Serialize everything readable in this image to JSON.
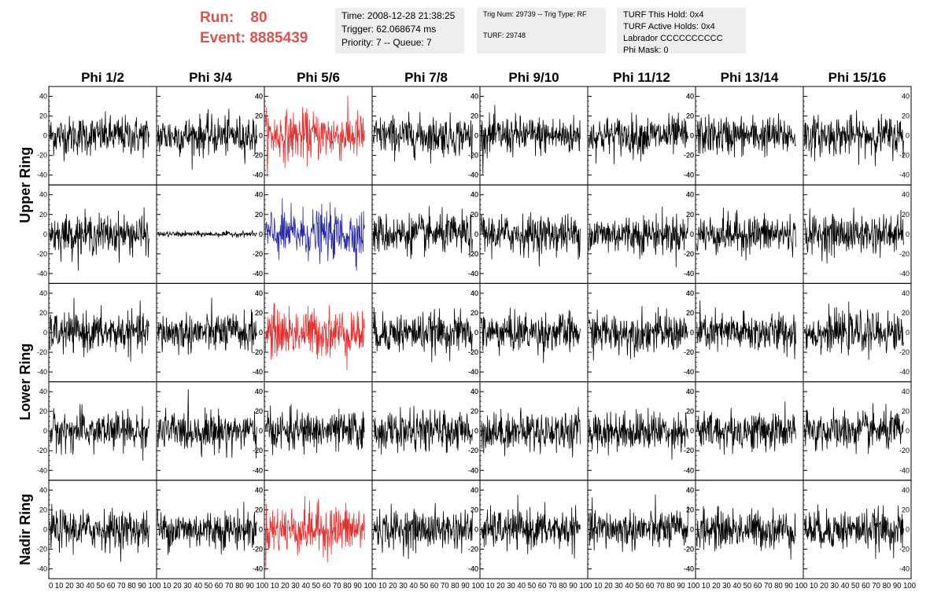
{
  "header": {
    "run_label": "Run:",
    "run_value": "80",
    "event_label": "Event:",
    "event_value": "8885439",
    "info_box_1": [
      "Time: 2008-12-28 21:38:25",
      "Trigger: 62.068674 ms",
      "Priority: 7 -- Queue: 7"
    ],
    "info_box_2": [
      "Trig Num: 29739 -- Trig Type: RF",
      "TURF: 29748"
    ],
    "info_box_3": [
      "TURF This Hold: 0x4",
      "TURF Active Holds: 0x4",
      "Labrador CCCCCCCCCC",
      "Phi Mask: 0"
    ]
  },
  "colors": {
    "header_red": "#d9534f",
    "trace_black": "#000000",
    "trace_red": "#e03030",
    "trace_blue": "#2a2aa8"
  },
  "chart_data": {
    "type": "line",
    "column_titles": [
      "Phi 1/2",
      "Phi 3/4",
      "Phi 5/6",
      "Phi 7/8",
      "Phi 9/10",
      "Phi 11/12",
      "Phi 13/14",
      "Phi 15/16"
    ],
    "ring_labels": [
      "Upper Ring",
      "Lower Ring",
      "Nadir Ring"
    ],
    "y_ticks": [
      "40",
      "20",
      "0",
      "-20",
      "-40"
    ],
    "x_tick_row": "0 10 20 30 40 50 60 70 80 90 10",
    "x_tick_row_last": "0 10 20 30 40 50 60 70 80 90 100",
    "ylim": [
      -50,
      50
    ],
    "xlim": [
      0,
      100
    ],
    "rows": 5,
    "cols": 8,
    "samples_per_trace": 260,
    "highlighted": [
      {
        "row": 0,
        "col": 2,
        "color": "red"
      },
      {
        "row": 1,
        "col": 2,
        "color": "blue"
      },
      {
        "row": 2,
        "col": 2,
        "color": "red"
      },
      {
        "row": 4,
        "col": 2,
        "color": "red"
      }
    ],
    "quiet_trace": {
      "row": 1,
      "col": 1
    },
    "typical_amplitude": 18
  }
}
